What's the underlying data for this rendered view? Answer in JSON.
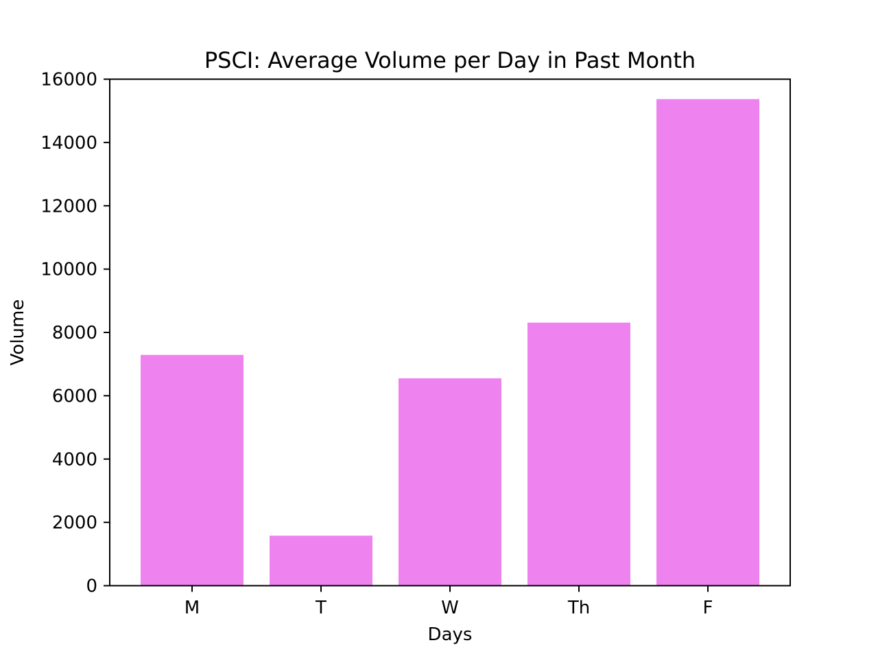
{
  "chart_data": {
    "type": "bar",
    "title": "PSCI: Average Volume per Day in Past Month",
    "xlabel": "Days",
    "ylabel": "Volume",
    "categories": [
      "M",
      "T",
      "W",
      "Th",
      "F"
    ],
    "values": [
      7290,
      1580,
      6550,
      8310,
      15370
    ],
    "ylim": [
      0,
      16000
    ],
    "yticks": [
      0,
      2000,
      4000,
      6000,
      8000,
      10000,
      12000,
      14000,
      16000
    ],
    "bar_color": "#ee82ee",
    "grid": false,
    "legend": "none"
  }
}
